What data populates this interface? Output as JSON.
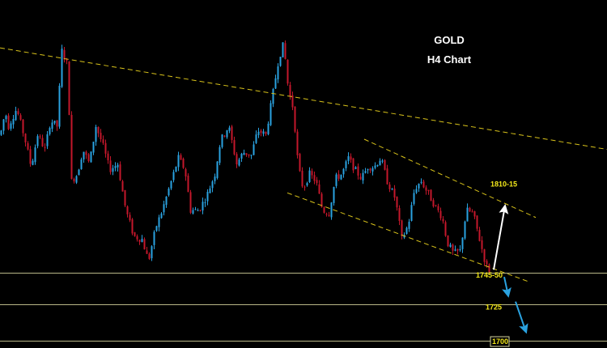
{
  "chart_title": {
    "line1": "GOLD",
    "line2": "H4 Chart"
  },
  "colors": {
    "background": "#000000",
    "bull": "#2aa2e0",
    "bear": "#c4172b",
    "trendline": "#d8c21a",
    "level_line": "#d9d7a0",
    "label_text": "#f3e81a",
    "arrow_up": "#ffffff",
    "arrow_down": "#2aa2e0"
  },
  "chart_data": {
    "type": "candlestick",
    "instrument": "GOLD",
    "timeframe": "H4",
    "ylim": [
      1695,
      1935
    ],
    "levels": [
      {
        "label": "1810-15",
        "value": 1812,
        "style": "label"
      },
      {
        "label": "1745-50",
        "value": 1747,
        "style": "line+label"
      },
      {
        "label": "1725",
        "value": 1725,
        "style": "line+label"
      },
      {
        "label": "1700",
        "value": 1700,
        "style": "line+label"
      }
    ],
    "close_path": [
      [
        0,
        1842
      ],
      [
        6,
        1858
      ],
      [
        10,
        1848
      ],
      [
        20,
        1860
      ],
      [
        30,
        1840
      ],
      [
        38,
        1820
      ],
      [
        46,
        1842
      ],
      [
        55,
        1832
      ],
      [
        62,
        1852
      ],
      [
        70,
        1848
      ],
      [
        76,
        1900
      ],
      [
        83,
        1890
      ],
      [
        88,
        1810
      ],
      [
        95,
        1815
      ],
      [
        102,
        1832
      ],
      [
        110,
        1822
      ],
      [
        118,
        1848
      ],
      [
        126,
        1836
      ],
      [
        135,
        1818
      ],
      [
        145,
        1822
      ],
      [
        155,
        1790
      ],
      [
        165,
        1772
      ],
      [
        175,
        1770
      ],
      [
        183,
        1755
      ],
      [
        192,
        1778
      ],
      [
        200,
        1790
      ],
      [
        210,
        1808
      ],
      [
        220,
        1826
      ],
      [
        228,
        1818
      ],
      [
        235,
        1790
      ],
      [
        245,
        1790
      ],
      [
        255,
        1800
      ],
      [
        265,
        1815
      ],
      [
        272,
        1838
      ],
      [
        282,
        1848
      ],
      [
        292,
        1822
      ],
      [
        300,
        1830
      ],
      [
        310,
        1828
      ],
      [
        318,
        1845
      ],
      [
        328,
        1842
      ],
      [
        336,
        1868
      ],
      [
        344,
        1895
      ],
      [
        350,
        1905
      ],
      [
        356,
        1872
      ],
      [
        362,
        1860
      ],
      [
        368,
        1820
      ],
      [
        374,
        1805
      ],
      [
        382,
        1815
      ],
      [
        390,
        1810
      ],
      [
        398,
        1790
      ],
      [
        406,
        1788
      ],
      [
        414,
        1812
      ],
      [
        422,
        1815
      ],
      [
        430,
        1826
      ],
      [
        438,
        1818
      ],
      [
        446,
        1812
      ],
      [
        454,
        1820
      ],
      [
        462,
        1820
      ],
      [
        470,
        1826
      ],
      [
        478,
        1810
      ],
      [
        488,
        1798
      ],
      [
        496,
        1770
      ],
      [
        504,
        1780
      ],
      [
        512,
        1805
      ],
      [
        520,
        1810
      ],
      [
        528,
        1802
      ],
      [
        538,
        1792
      ],
      [
        546,
        1785
      ],
      [
        552,
        1768
      ],
      [
        560,
        1760
      ],
      [
        568,
        1762
      ],
      [
        576,
        1790
      ],
      [
        584,
        1788
      ],
      [
        592,
        1770
      ],
      [
        600,
        1752
      ],
      [
        606,
        1747
      ]
    ],
    "trendlines": [
      {
        "name": "long-term descending resistance",
        "from": [
          0,
          1902
        ],
        "to": [
          750,
          1832
        ]
      },
      {
        "name": "channel upper",
        "from": [
          450,
          1839
        ],
        "to": [
          662,
          1785
        ]
      },
      {
        "name": "channel lower",
        "from": [
          355,
          1802
        ],
        "to": [
          652,
          1741
        ]
      }
    ],
    "arrows": [
      {
        "direction": "up",
        "from": [
          610,
          1749
        ],
        "to": [
          624,
          1793
        ]
      },
      {
        "direction": "down",
        "from": [
          623,
          1744
        ],
        "to": [
          628,
          1731
        ]
      },
      {
        "direction": "down",
        "from": [
          637,
          1727
        ],
        "to": [
          650,
          1706
        ]
      }
    ]
  }
}
